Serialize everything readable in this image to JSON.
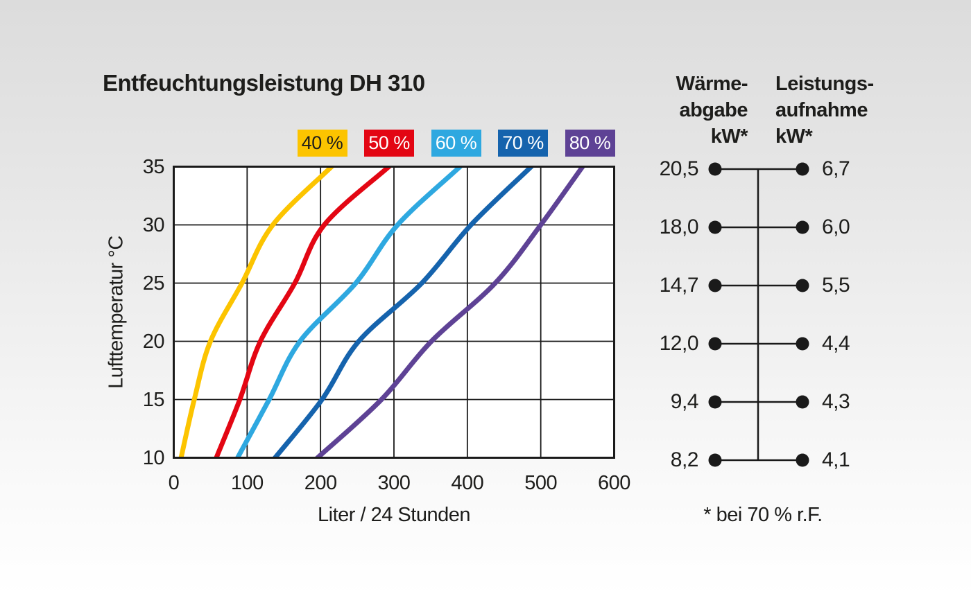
{
  "title": "Entfeuchtungsleistung DH 310",
  "colors": {
    "text": "#1d1d1b",
    "grid": "#1a1a1a",
    "plot_background": "#ffffff",
    "background_top": "#dcdcdc",
    "background_bottom": "#ffffff"
  },
  "chart_data": {
    "type": "line",
    "title": "Entfeuchtungsleistung DH 310",
    "xlabel": "Liter / 24 Stunden",
    "ylabel": "Lufttemperatur °C",
    "xlim": [
      0,
      600
    ],
    "ylim": [
      10,
      35
    ],
    "xticks": [
      0,
      100,
      200,
      300,
      400,
      500,
      600
    ],
    "yticks": [
      35,
      30,
      25,
      20,
      15,
      10
    ],
    "grid": true,
    "legend_position": "top",
    "temperatures_c": [
      10,
      15,
      20,
      25,
      30,
      35
    ],
    "series": [
      {
        "name": "40 %",
        "color": "#fcc400",
        "label_text_color": "#1d1d1b",
        "liters_per_24h": [
          10,
          28,
          50,
          93,
          135,
          215
        ]
      },
      {
        "name": "50 %",
        "color": "#e30613",
        "label_text_color": "#ffffff",
        "liters_per_24h": [
          58,
          90,
          118,
          165,
          205,
          293
        ]
      },
      {
        "name": "60 %",
        "color": "#2ea8e0",
        "label_text_color": "#ffffff",
        "liters_per_24h": [
          87,
          130,
          172,
          248,
          305,
          390
        ]
      },
      {
        "name": "70 %",
        "color": "#1563ad",
        "label_text_color": "#ffffff",
        "liters_per_24h": [
          138,
          202,
          252,
          338,
          405,
          487
        ]
      },
      {
        "name": "80 %",
        "color": "#5e4295",
        "label_text_color": "#ffffff",
        "liters_per_24h": [
          196,
          283,
          351,
          438,
          500,
          557
        ]
      }
    ]
  },
  "kw_table": {
    "col1_header": "Wärme-\nabgabe\nkW*",
    "col2_header": "Leistungs-\naufnahme\nkW*",
    "rows": [
      {
        "waermeabgabe": "20,5",
        "leistungsaufnahme": "6,7"
      },
      {
        "waermeabgabe": "18,0",
        "leistungsaufnahme": "6,0"
      },
      {
        "waermeabgabe": "14,7",
        "leistungsaufnahme": "5,5"
      },
      {
        "waermeabgabe": "12,0",
        "leistungsaufnahme": "4,4"
      },
      {
        "waermeabgabe": "9,4",
        "leistungsaufnahme": "4,3"
      },
      {
        "waermeabgabe": "8,2",
        "leistungsaufnahme": "4,1"
      }
    ],
    "footnote": "* bei 70 % r.F."
  }
}
